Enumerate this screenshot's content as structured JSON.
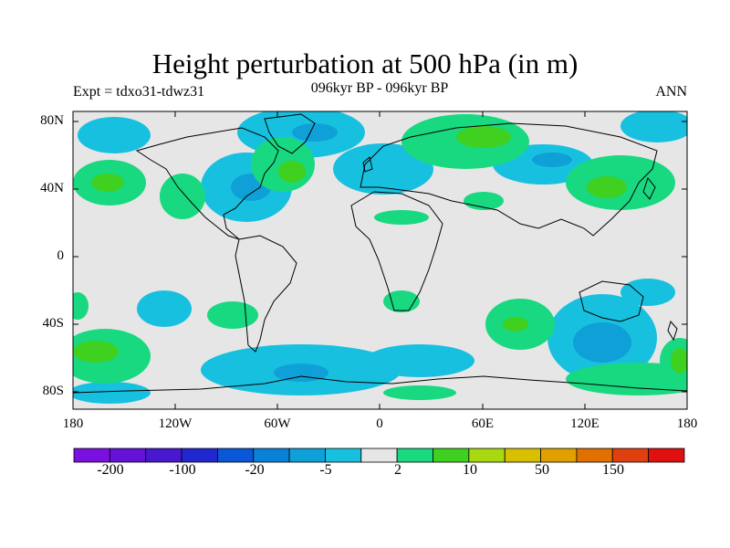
{
  "title": "Height perturbation at 500 hPa (in m)",
  "subtitle_left": "Expt = tdxo31-tdwz31",
  "subtitle_center": "096kyr BP - 096kyr BP",
  "subtitle_right": "ANN",
  "y_labels": [
    "80N",
    "40N",
    "0",
    "40S",
    "80S"
  ],
  "x_labels": [
    "180",
    "120W",
    "60W",
    "0",
    "60E",
    "120E",
    "180"
  ],
  "colorbar": {
    "labels": [
      "-200",
      "-100",
      "-20",
      "-5",
      "2",
      "10",
      "50",
      "150"
    ],
    "colors": [
      "#7a10e0",
      "#6412d8",
      "#4818d0",
      "#2228d0",
      "#0a58d8",
      "#0a80d8",
      "#10a0d8",
      "#18c0e0",
      "#e6e6e6",
      "#18d880",
      "#40d020",
      "#a8d810",
      "#d8c000",
      "#e0a000",
      "#e07000",
      "#e04010",
      "#e01010"
    ]
  },
  "map_colors": {
    "ocean_background": "#e6e6e6",
    "blue_strong": "#10a0d8",
    "blue_light": "#18c0e0",
    "green_light": "#18d880",
    "green_strong": "#40d020"
  }
}
